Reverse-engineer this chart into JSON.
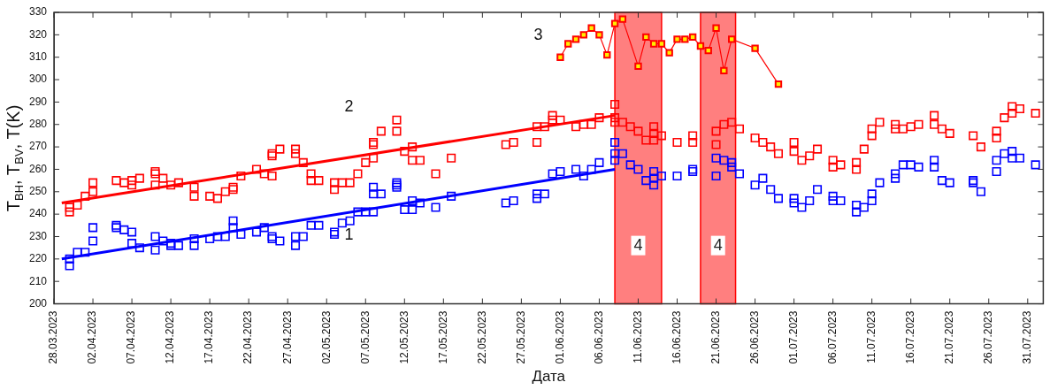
{
  "chart_data": {
    "type": "scatter",
    "xlabel": "Дата",
    "ylabel": "T$_{BH}$, T$_{BV}$, T(K)",
    "xlim": [
      "2023-03-28",
      "2023-08-02"
    ],
    "ylim": [
      200,
      330
    ],
    "xticks": [
      {
        "value": "2023-03-28",
        "label": "28.03.2023"
      },
      {
        "value": "2023-04-02",
        "label": "02.04.2023"
      },
      {
        "value": "2023-04-07",
        "label": "07.04.2023"
      },
      {
        "value": "2023-04-12",
        "label": "12.04.2023"
      },
      {
        "value": "2023-04-17",
        "label": "17.04.2023"
      },
      {
        "value": "2023-04-22",
        "label": "22.04.2023"
      },
      {
        "value": "2023-04-27",
        "label": "27.04.2023"
      },
      {
        "value": "2023-05-02",
        "label": "02.05.2023"
      },
      {
        "value": "2023-05-07",
        "label": "07.05.2023"
      },
      {
        "value": "2023-05-12",
        "label": "12.05.2023"
      },
      {
        "value": "2023-05-17",
        "label": "17.05.2023"
      },
      {
        "value": "2023-05-22",
        "label": "22.05.2023"
      },
      {
        "value": "2023-05-27",
        "label": "27.05.2023"
      },
      {
        "value": "2023-06-01",
        "label": "01.06.2023"
      },
      {
        "value": "2023-06-06",
        "label": "06.06.2023"
      },
      {
        "value": "2023-06-11",
        "label": "11.06.2023"
      },
      {
        "value": "2023-06-16",
        "label": "16.06.2023"
      },
      {
        "value": "2023-06-21",
        "label": "21.06.2023"
      },
      {
        "value": "2023-06-26",
        "label": "26.06.2023"
      },
      {
        "value": "2023-07-01",
        "label": "01.07.2023"
      },
      {
        "value": "2023-07-06",
        "label": "06.07.2023"
      },
      {
        "value": "2023-07-11",
        "label": "11.07.2023"
      },
      {
        "value": "2023-07-16",
        "label": "16.07.2023"
      },
      {
        "value": "2023-07-21",
        "label": "21.07.2023"
      },
      {
        "value": "2023-07-26",
        "label": "26.07.2023"
      },
      {
        "value": "2023-07-31",
        "label": "31.07.2023"
      }
    ],
    "yticks": [
      200,
      210,
      220,
      230,
      240,
      250,
      260,
      270,
      280,
      290,
      300,
      310,
      320,
      330
    ],
    "grid": false,
    "legend": false,
    "bands": [
      {
        "axis": "x",
        "from": "2023-06-08",
        "to": "2023-06-14",
        "label": "4",
        "color": "#ff0000"
      },
      {
        "axis": "x",
        "from": "2023-06-19",
        "to": "2023-06-23T12:00",
        "label": "4",
        "color": "#ff0000"
      }
    ],
    "series": [
      {
        "type": "scatter",
        "name": "1",
        "color": "#0000ff",
        "marker": "square",
        "x": [
          "2023-03-30",
          "2023-03-30",
          "2023-03-31",
          "2023-04-01",
          "2023-04-02",
          "2023-04-02",
          "2023-04-05",
          "2023-04-05",
          "2023-04-06",
          "2023-04-07",
          "2023-04-07",
          "2023-04-08",
          "2023-04-10",
          "2023-04-10",
          "2023-04-11",
          "2023-04-12",
          "2023-04-12",
          "2023-04-13",
          "2023-04-15",
          "2023-04-15",
          "2023-04-17",
          "2023-04-18",
          "2023-04-19",
          "2023-04-20",
          "2023-04-20",
          "2023-04-21",
          "2023-04-23",
          "2023-04-24",
          "2023-04-25",
          "2023-04-25",
          "2023-04-26",
          "2023-04-28",
          "2023-04-28",
          "2023-04-29",
          "2023-04-30",
          "2023-05-01",
          "2023-05-03",
          "2023-05-03",
          "2023-05-04",
          "2023-05-05",
          "2023-05-06",
          "2023-05-07",
          "2023-05-08",
          "2023-05-08",
          "2023-05-08",
          "2023-05-09",
          "2023-05-11",
          "2023-05-11",
          "2023-05-11",
          "2023-05-12",
          "2023-05-13",
          "2023-05-13",
          "2023-05-14",
          "2023-05-16",
          "2023-05-18",
          "2023-05-25",
          "2023-05-26",
          "2023-05-29",
          "2023-05-29",
          "2023-05-30",
          "2023-05-31",
          "2023-06-01",
          "2023-06-03",
          "2023-06-04",
          "2023-06-05",
          "2023-06-06",
          "2023-06-08",
          "2023-06-08",
          "2023-06-08",
          "2023-06-09",
          "2023-06-10",
          "2023-06-11",
          "2023-06-12",
          "2023-06-13",
          "2023-06-13",
          "2023-06-13",
          "2023-06-14",
          "2023-06-16",
          "2023-06-18",
          "2023-06-18",
          "2023-06-21",
          "2023-06-21",
          "2023-06-22",
          "2023-06-23",
          "2023-06-23",
          "2023-06-24",
          "2023-06-26",
          "2023-06-27",
          "2023-06-28",
          "2023-06-29",
          "2023-07-01",
          "2023-07-01",
          "2023-07-02",
          "2023-07-03",
          "2023-07-04",
          "2023-07-06",
          "2023-07-06",
          "2023-07-07",
          "2023-07-09",
          "2023-07-09",
          "2023-07-10",
          "2023-07-11",
          "2023-07-11",
          "2023-07-12",
          "2023-07-14",
          "2023-07-14",
          "2023-07-15",
          "2023-07-16",
          "2023-07-17",
          "2023-07-19",
          "2023-07-19",
          "2023-07-20",
          "2023-07-21",
          "2023-07-24",
          "2023-07-24",
          "2023-07-25",
          "2023-07-27",
          "2023-07-27",
          "2023-07-28",
          "2023-07-29",
          "2023-07-29",
          "2023-07-30",
          "2023-08-01"
        ],
        "values": [
          220,
          217,
          223,
          223,
          228,
          234,
          235,
          234,
          233,
          232,
          227,
          225,
          230,
          224,
          228,
          227,
          226,
          226,
          229,
          226,
          229,
          230,
          230,
          237,
          234,
          231,
          232,
          234,
          230,
          229,
          228,
          230,
          226,
          230,
          235,
          235,
          231,
          232,
          236,
          237,
          241,
          241,
          241,
          249,
          252,
          249,
          254,
          253,
          252,
          242,
          242,
          246,
          245,
          243,
          248,
          245,
          246,
          247,
          249,
          249,
          258,
          259,
          260,
          257,
          260,
          263,
          272,
          267,
          264,
          267,
          262,
          260,
          255,
          259,
          256,
          253,
          257,
          257,
          260,
          259,
          265,
          257,
          264,
          263,
          261,
          258,
          253,
          256,
          251,
          247,
          247,
          245,
          243,
          246,
          251,
          248,
          246,
          246,
          244,
          241,
          243,
          249,
          246,
          254,
          258,
          256,
          262,
          262,
          261,
          264,
          261,
          255,
          254,
          255,
          254,
          250,
          264,
          259,
          267,
          268,
          265,
          265,
          262
        ]
      },
      {
        "type": "scatter",
        "name": "2",
        "color": "#ff0000",
        "marker": "square",
        "x": [
          "2023-03-30",
          "2023-03-30",
          "2023-03-31",
          "2023-04-01",
          "2023-04-02",
          "2023-04-02",
          "2023-04-05",
          "2023-04-06",
          "2023-04-07",
          "2023-04-07",
          "2023-04-08",
          "2023-04-10",
          "2023-04-10",
          "2023-04-10",
          "2023-04-11",
          "2023-04-12",
          "2023-04-13",
          "2023-04-15",
          "2023-04-15",
          "2023-04-17",
          "2023-04-18",
          "2023-04-19",
          "2023-04-20",
          "2023-04-20",
          "2023-04-21",
          "2023-04-23",
          "2023-04-24",
          "2023-04-25",
          "2023-04-25",
          "2023-04-25",
          "2023-04-26",
          "2023-04-28",
          "2023-04-28",
          "2023-04-29",
          "2023-04-30",
          "2023-04-30",
          "2023-05-01",
          "2023-05-03",
          "2023-05-03",
          "2023-05-04",
          "2023-05-05",
          "2023-05-06",
          "2023-05-07",
          "2023-05-08",
          "2023-05-08",
          "2023-05-08",
          "2023-05-09",
          "2023-05-11",
          "2023-05-11",
          "2023-05-12",
          "2023-05-13",
          "2023-05-13",
          "2023-05-14",
          "2023-05-16",
          "2023-05-18",
          "2023-05-25",
          "2023-05-26",
          "2023-05-29",
          "2023-05-29",
          "2023-05-30",
          "2023-05-31",
          "2023-05-31",
          "2023-06-01",
          "2023-06-03",
          "2023-06-04",
          "2023-06-05",
          "2023-06-06",
          "2023-06-08",
          "2023-06-08",
          "2023-06-08",
          "2023-06-09",
          "2023-06-10",
          "2023-06-11",
          "2023-06-12",
          "2023-06-13",
          "2023-06-13",
          "2023-06-13",
          "2023-06-14",
          "2023-06-16",
          "2023-06-18",
          "2023-06-18",
          "2023-06-21",
          "2023-06-21",
          "2023-06-22",
          "2023-06-23",
          "2023-06-24",
          "2023-06-26",
          "2023-06-27",
          "2023-06-28",
          "2023-06-29",
          "2023-07-01",
          "2023-07-01",
          "2023-07-02",
          "2023-07-03",
          "2023-07-04",
          "2023-07-06",
          "2023-07-06",
          "2023-07-07",
          "2023-07-09",
          "2023-07-09",
          "2023-07-10",
          "2023-07-11",
          "2023-07-11",
          "2023-07-12",
          "2023-07-14",
          "2023-07-14",
          "2023-07-15",
          "2023-07-16",
          "2023-07-17",
          "2023-07-19",
          "2023-07-19",
          "2023-07-20",
          "2023-07-21",
          "2023-07-24",
          "2023-07-25",
          "2023-07-27",
          "2023-07-27",
          "2023-07-28",
          "2023-07-29",
          "2023-07-29",
          "2023-07-30",
          "2023-08-01"
        ],
        "values": [
          243,
          241,
          244,
          248,
          250,
          254,
          255,
          254,
          253,
          255,
          256,
          253,
          258,
          259,
          256,
          253,
          254,
          248,
          252,
          248,
          247,
          250,
          251,
          252,
          257,
          260,
          258,
          257,
          266,
          267,
          269,
          267,
          269,
          263,
          258,
          255,
          255,
          251,
          254,
          254,
          254,
          258,
          263,
          265,
          271,
          272,
          277,
          277,
          282,
          268,
          270,
          264,
          264,
          258,
          265,
          271,
          272,
          272,
          279,
          279,
          282,
          284,
          282,
          279,
          280,
          280,
          283,
          289,
          283,
          281,
          281,
          279,
          277,
          273,
          279,
          276,
          273,
          275,
          272,
          275,
          272,
          277,
          271,
          280,
          281,
          278,
          274,
          272,
          270,
          267,
          272,
          268,
          264,
          266,
          269,
          264,
          261,
          262,
          263,
          260,
          269,
          278,
          275,
          281,
          280,
          278,
          278,
          279,
          280,
          284,
          280,
          278,
          276,
          275,
          270,
          277,
          274,
          283,
          288,
          285,
          287,
          285
        ]
      },
      {
        "type": "line",
        "name": "3",
        "color": "#ff0000",
        "marker": "square",
        "line_style": "solid",
        "x": [
          "2023-06-01",
          "2023-06-02",
          "2023-06-03",
          "2023-06-04",
          "2023-06-05",
          "2023-06-06",
          "2023-06-07",
          "2023-06-08",
          "2023-06-09",
          "2023-06-11",
          "2023-06-12",
          "2023-06-13",
          "2023-06-14",
          "2023-06-15",
          "2023-06-16",
          "2023-06-17",
          "2023-06-18",
          "2023-06-19",
          "2023-06-20",
          "2023-06-21",
          "2023-06-22",
          "2023-06-23",
          "2023-06-26",
          "2023-06-29"
        ],
        "values": [
          310,
          316,
          318,
          320,
          323,
          320,
          311,
          325,
          327,
          306,
          319,
          316,
          316,
          312,
          318,
          318,
          319,
          315,
          313,
          323,
          304,
          318,
          314,
          298
        ]
      },
      {
        "type": "line",
        "color": "#0000ff",
        "marker": "none",
        "line_style": "solid",
        "x": [
          "2023-03-29",
          "2023-06-08"
        ],
        "values": [
          220,
          260
        ]
      },
      {
        "type": "line",
        "color": "#ff0000",
        "marker": "none",
        "line_style": "solid",
        "x": [
          "2023-03-29",
          "2023-06-08"
        ],
        "values": [
          245,
          284
        ]
      }
    ]
  }
}
